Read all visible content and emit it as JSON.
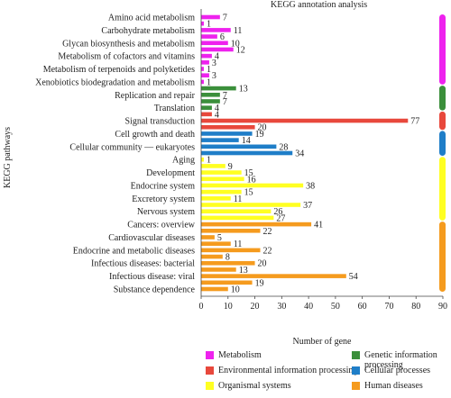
{
  "chart_data": {
    "type": "bar",
    "orientation": "horizontal",
    "title": "KEGG annotation analysis",
    "xlabel": "Number of gene",
    "ylabel": "KEGG pathways",
    "xlim": [
      0,
      90
    ],
    "xticks": [
      0,
      10,
      20,
      30,
      40,
      50,
      60,
      70,
      80,
      90
    ],
    "grid": false,
    "legend_position": "bottom",
    "categories": [
      {
        "name": "Metabolism",
        "color": "#ee22ee"
      },
      {
        "name": "Genetic information processing",
        "color": "#3b8f3b"
      },
      {
        "name": "Environmental information processing",
        "color": "#e8483c"
      },
      {
        "name": "Cellular processes",
        "color": "#1f7ec8"
      },
      {
        "name": "Organismal systems",
        "color": "#ffff22"
      },
      {
        "name": "Human diseases",
        "color": "#f59b1e"
      }
    ],
    "labeled_pathways": [
      "Amino acid metabolism",
      "Carbohydrate metabolism",
      "Glycan biosynthesis and metabolism",
      "Metabolism of cofactors and vitamins",
      "Metabolism of terpenoids and polyketides",
      "Xenobiotics biodegradation and metabolism",
      "Replication and repair",
      "Translation",
      "Signal transduction",
      "Cell growth and death",
      "Cellular community — eukaryotes",
      "Aging",
      "Development",
      "Endocrine system",
      "Excretory system",
      "Nervous system",
      "Cancers: overview",
      "Cardiovascular diseases",
      "Endocrine and metabolic diseases",
      "Infectious diseases: bacterial",
      "Infectious disease: viral",
      "Substance dependence"
    ],
    "bars": [
      {
        "label": "Amino acid metabolism",
        "value": 7,
        "category": 0
      },
      {
        "label": "",
        "value": 1,
        "category": 0
      },
      {
        "label": "Carbohydrate metabolism",
        "value": 11,
        "category": 0
      },
      {
        "label": "",
        "value": 6,
        "category": 0
      },
      {
        "label": "Glycan biosynthesis and metabolism",
        "value": 10,
        "category": 0
      },
      {
        "label": "",
        "value": 12,
        "category": 0
      },
      {
        "label": "Metabolism of cofactors and vitamins",
        "value": 4,
        "category": 0
      },
      {
        "label": "",
        "value": 3,
        "category": 0
      },
      {
        "label": "Metabolism of terpenoids and polyketides",
        "value": 1,
        "category": 0
      },
      {
        "label": "",
        "value": 3,
        "category": 0
      },
      {
        "label": "Xenobiotics biodegradation and metabolism",
        "value": 1,
        "category": 0
      },
      {
        "label": "",
        "value": 13,
        "category": 1
      },
      {
        "label": "Replication and repair",
        "value": 7,
        "category": 1
      },
      {
        "label": "",
        "value": 7,
        "category": 1
      },
      {
        "label": "Translation",
        "value": 4,
        "category": 1
      },
      {
        "label": "",
        "value": 4,
        "category": 2
      },
      {
        "label": "Signal transduction",
        "value": 77,
        "category": 2
      },
      {
        "label": "",
        "value": 20,
        "category": 2
      },
      {
        "label": "Cell growth and death",
        "value": 19,
        "category": 3
      },
      {
        "label": "",
        "value": 14,
        "category": 3
      },
      {
        "label": "Cellular community — eukaryotes",
        "value": 28,
        "category": 3
      },
      {
        "label": "",
        "value": 34,
        "category": 3
      },
      {
        "label": "Aging",
        "value": 1,
        "category": 4
      },
      {
        "label": "",
        "value": 9,
        "category": 4
      },
      {
        "label": "Development",
        "value": 15,
        "category": 4
      },
      {
        "label": "",
        "value": 16,
        "category": 4
      },
      {
        "label": "Endocrine system",
        "value": 38,
        "category": 4
      },
      {
        "label": "",
        "value": 15,
        "category": 4
      },
      {
        "label": "Excretory system",
        "value": 11,
        "category": 4
      },
      {
        "label": "",
        "value": 37,
        "category": 4
      },
      {
        "label": "Nervous system",
        "value": 26,
        "category": 4
      },
      {
        "label": "",
        "value": 27,
        "category": 4
      },
      {
        "label": "Cancers: overview",
        "value": 41,
        "category": 5
      },
      {
        "label": "",
        "value": 22,
        "category": 5
      },
      {
        "label": "Cardiovascular diseases",
        "value": 5,
        "category": 5
      },
      {
        "label": "",
        "value": 11,
        "category": 5
      },
      {
        "label": "Endocrine and metabolic diseases",
        "value": 22,
        "category": 5
      },
      {
        "label": "",
        "value": 8,
        "category": 5
      },
      {
        "label": "Infectious diseases: bacterial",
        "value": 20,
        "category": 5
      },
      {
        "label": "",
        "value": 13,
        "category": 5
      },
      {
        "label": "Infectious disease: viral",
        "value": 54,
        "category": 5
      },
      {
        "label": "",
        "value": 19,
        "category": 5
      },
      {
        "label": "Substance dependence",
        "value": 10,
        "category": 5
      }
    ]
  }
}
